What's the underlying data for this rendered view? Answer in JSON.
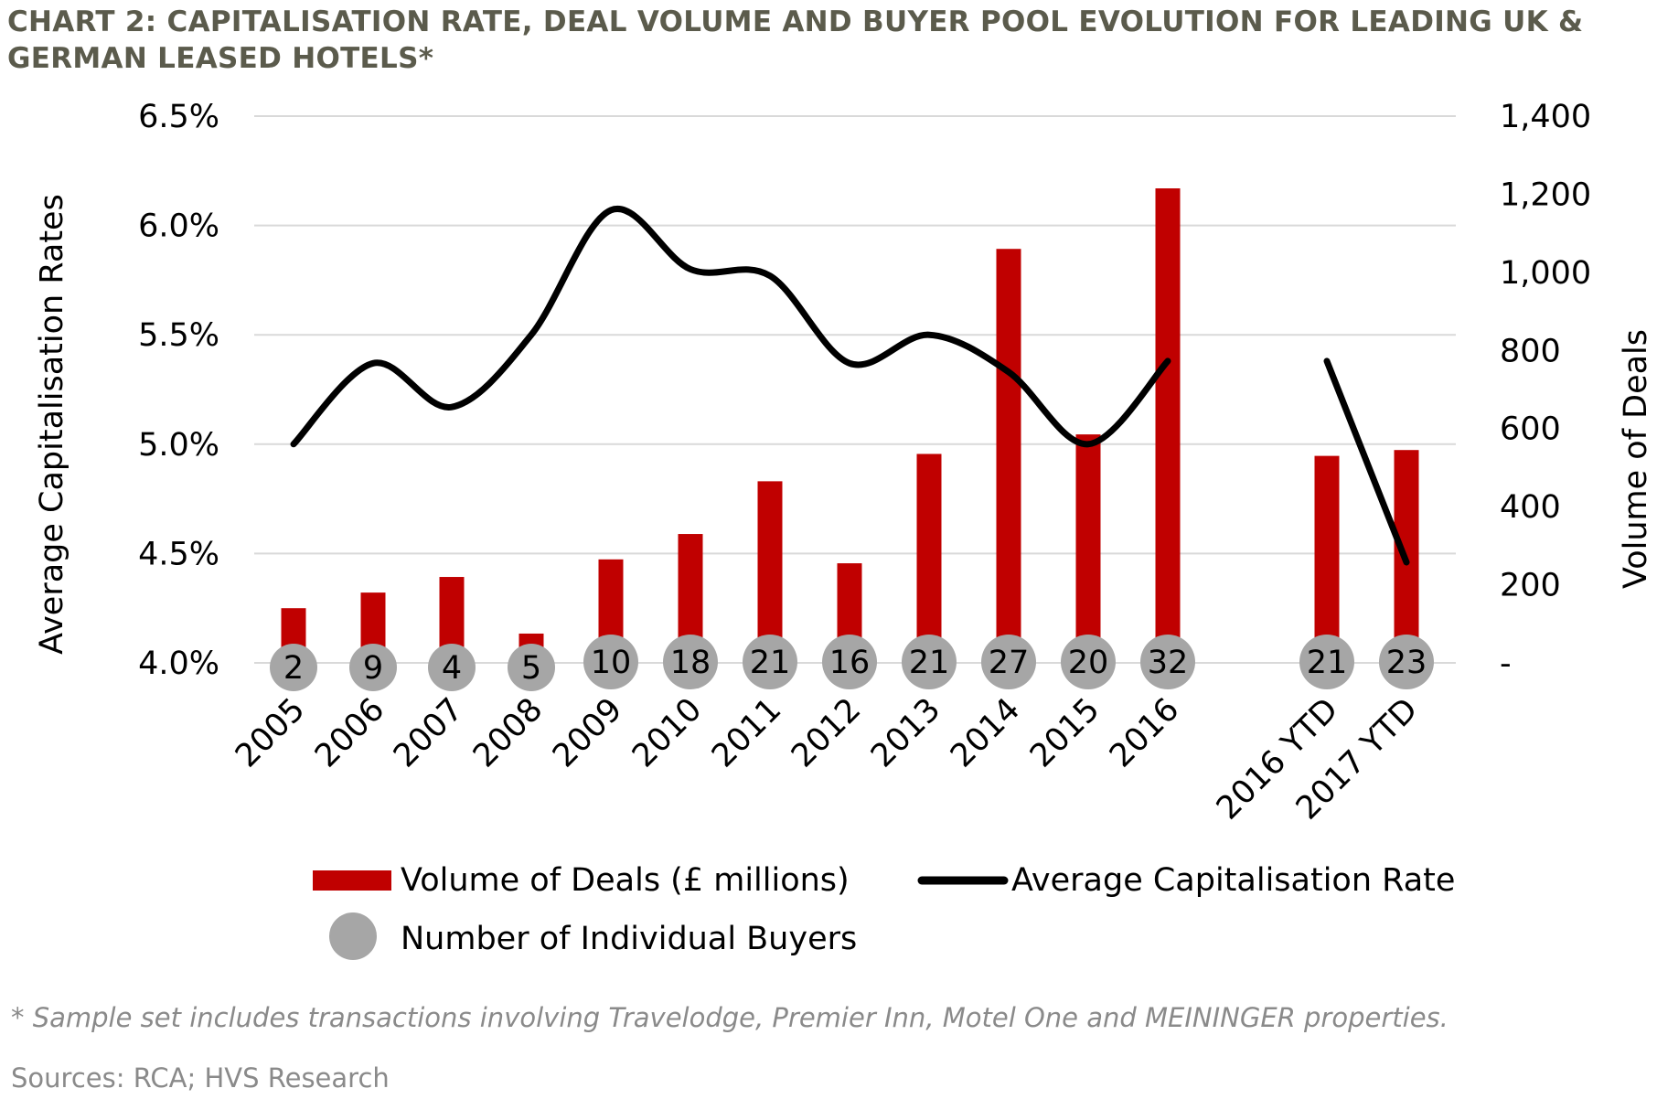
{
  "title": "CHART 2: CAPITALISATION RATE, DEAL VOLUME AND BUYER POOL EVOLUTION FOR LEADING UK & GERMAN LEASED HOTELS*",
  "footnote": "* Sample set includes transactions involving Travelodge, Premier Inn, Motel One and MEININGER properties.",
  "sources": "Sources: RCA; HVS Research",
  "colors": {
    "bar": "#c00000",
    "line": "#000000",
    "bubble": "#a6a6a6",
    "grid": "#d9d9d9"
  },
  "chart_data": {
    "type": "bar",
    "categories": [
      "2005",
      "2006",
      "2007",
      "2008",
      "2009",
      "2010",
      "2011",
      "2012",
      "2013",
      "2014",
      "2015",
      "2016",
      "2016 YTD",
      "2017 YTD"
    ],
    "left_axis": {
      "label": "Average Capitalisation Rates",
      "ylim": [
        4.0,
        6.5
      ],
      "ticks": [
        "4.0%",
        "4.5%",
        "5.0%",
        "5.5%",
        "6.0%",
        "6.5%"
      ]
    },
    "right_axis": {
      "label": "Volume of Deals",
      "ylim": [
        0,
        1400
      ],
      "ticks": [
        "-",
        "200",
        "400",
        "600",
        "800",
        "1,000",
        "1,200",
        "1,400"
      ]
    },
    "series": [
      {
        "name": "Volume of Deals (£ millions)",
        "type": "bar",
        "axis": "right",
        "values": [
          140,
          180,
          220,
          75,
          265,
          330,
          465,
          255,
          535,
          1060,
          585,
          1215,
          530,
          545
        ]
      },
      {
        "name": "Average Capitalisation Rate",
        "type": "line",
        "axis": "left",
        "values": [
          5.0,
          5.37,
          5.17,
          5.5,
          6.07,
          5.8,
          5.77,
          5.37,
          5.5,
          5.33,
          5.0,
          5.38,
          5.38,
          4.46
        ]
      },
      {
        "name": "Number of Individual Buyers",
        "type": "bubble",
        "values": [
          2,
          9,
          4,
          5,
          10,
          18,
          21,
          16,
          21,
          27,
          20,
          32,
          21,
          23
        ]
      }
    ],
    "grid": true,
    "legend": "bottom"
  }
}
